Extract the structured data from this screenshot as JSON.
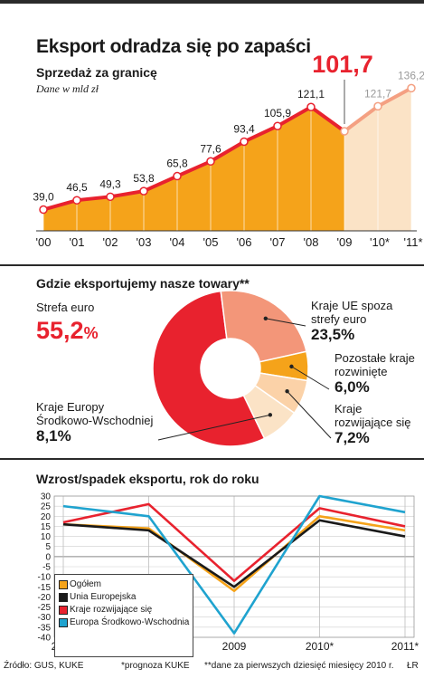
{
  "title": "Eksport odradza się po zapaści",
  "chart_data": [
    {
      "type": "area",
      "subtitle": "Sprzedaż za granicę",
      "unit": "Dane w mld zł",
      "categories": [
        "'00",
        "'01",
        "'02",
        "'03",
        "'04",
        "'05",
        "'06",
        "'07",
        "'08",
        "'09",
        "'10*",
        "'11*"
      ],
      "values": [
        39.0,
        46.5,
        49.3,
        53.8,
        65.8,
        77.6,
        93.4,
        105.9,
        121.1,
        101.7,
        121.7,
        136.2
      ],
      "value_labels": [
        "39,0",
        "46,5",
        "49,3",
        "53,8",
        "65,8",
        "77,6",
        "93,4",
        "105,9",
        "121,1",
        "101,7",
        "121,7",
        "136,2"
      ],
      "forecast_from_index": 9,
      "highlight_index": 9,
      "colors": {
        "actual_fill": "#f5a31a",
        "forecast_fill": "#fbe3c6",
        "line": "#e8222e",
        "forecast_line": "#f4a082",
        "highlight": "#e8222e",
        "forecast_label": "#9a9a9a"
      }
    },
    {
      "type": "pie",
      "title": "Gdzie eksportujemy nasze towary**",
      "slices": [
        {
          "label": "Strefa euro",
          "value": 55.2,
          "display": "55,2",
          "unit": "%",
          "color": "#e8222e"
        },
        {
          "label": "Kraje UE spoza strefy euro",
          "value": 23.5,
          "display": "23,5%",
          "color": "#f39679"
        },
        {
          "label": "Pozostałe kraje rozwinięte",
          "value": 6.0,
          "display": "6,0%",
          "color": "#f5a31a"
        },
        {
          "label": "Kraje rozwijające się",
          "value": 7.2,
          "display": "7,2%",
          "color": "#fbd2a8"
        },
        {
          "label": "Kraje Europy Środkowo-Wschodniej",
          "value": 8.1,
          "display": "8,1%",
          "color": "#fbe3c6"
        }
      ],
      "label_lines": {
        "strefa_euro": [
          "Strefa euro"
        ],
        "ue_spoza": [
          "Kraje UE spoza",
          "strefy euro"
        ],
        "pozostale": [
          "Pozostałe kraje",
          "rozwinięte"
        ],
        "rozwijajace": [
          "Kraje",
          "rozwijające się"
        ],
        "cee": [
          "Kraje Europy",
          "Środkowo-Wschodniej"
        ]
      }
    },
    {
      "type": "line",
      "title": "Wzrost/spadek eksportu, rok do roku",
      "x": [
        "2007",
        "2008",
        "2009",
        "2010*",
        "2011*"
      ],
      "ylim": [
        -40,
        30
      ],
      "yticks": [
        30,
        25,
        20,
        15,
        10,
        5,
        0,
        -5,
        -10,
        -15,
        -20,
        -25,
        -30,
        -35,
        -40
      ],
      "grid": true,
      "legend_position": "bottom-left",
      "series": [
        {
          "name": "Ogółem",
          "color": "#f5a31a",
          "values": [
            16,
            14,
            -17,
            20,
            13
          ]
        },
        {
          "name": "Unia Europejska",
          "color": "#1a1a1a",
          "values": [
            16,
            13,
            -15,
            18,
            10
          ]
        },
        {
          "name": "Kraje rozwijające się",
          "color": "#e8222e",
          "values": [
            17,
            26,
            -12,
            24,
            15
          ]
        },
        {
          "name": "Europa Środkowo-Wschodnia",
          "color": "#1fa3cf",
          "values": [
            25,
            20,
            -38,
            30,
            22
          ]
        }
      ]
    }
  ],
  "footer": {
    "source": "Źródło: GUS, KUKE",
    "note1": "*prognoza KUKE",
    "note2": "**dane za pierwszych dziesięć miesięcy 2010 r.",
    "author": "ŁR"
  }
}
